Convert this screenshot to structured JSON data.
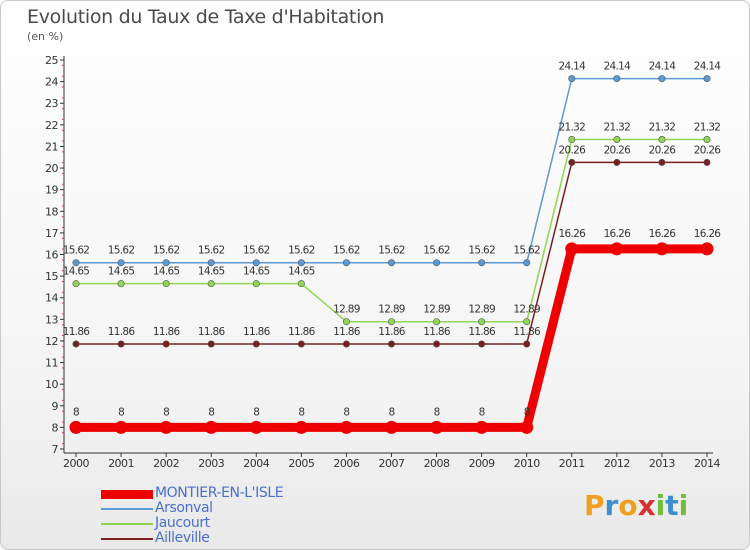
{
  "title": "Evolution du Taux de Taxe d'Habitation",
  "subtitle": "(en %)",
  "logo": {
    "text": "Proxiti",
    "letters": [
      {
        "ch": "P",
        "color": "#f0a020"
      },
      {
        "ch": "r",
        "color": "#3d8fd0"
      },
      {
        "ch": "o",
        "color": "#f0a020"
      },
      {
        "ch": "x",
        "color": "#d83030"
      },
      {
        "ch": "i",
        "color": "#6fbf3a"
      },
      {
        "ch": "t",
        "color": "#3d8fd0"
      },
      {
        "ch": "i",
        "color": "#6fbf3a"
      }
    ]
  },
  "chart_data": {
    "type": "line",
    "title": "Evolution du Taux de Taxe d'Habitation",
    "subtitle": "(en %)",
    "x": [
      2000,
      2001,
      2002,
      2003,
      2004,
      2005,
      2006,
      2007,
      2008,
      2009,
      2010,
      2011,
      2012,
      2013,
      2014
    ],
    "ylim": [
      7,
      25
    ],
    "yticks": [
      7,
      8,
      9,
      10,
      11,
      12,
      13,
      14,
      15,
      16,
      17,
      18,
      19,
      20,
      21,
      22,
      23,
      24,
      25
    ],
    "grid": false,
    "legend_position": "bottom-left",
    "series": [
      {
        "name": "MONTIER-EN-L'ISLE",
        "color": "#ee0000",
        "legend_text_color": "#4a6fd0",
        "emphasis": "thick",
        "values": [
          8,
          8,
          8,
          8,
          8,
          8,
          8,
          8,
          8,
          8,
          8,
          16.26,
          16.26,
          16.26,
          16.26
        ],
        "labels": [
          "8",
          "8",
          "8",
          "8",
          "8",
          "8",
          "8",
          "8",
          "8",
          "8",
          "8",
          "16.26",
          "16.26",
          "16.26",
          "16.26"
        ]
      },
      {
        "name": "Arsonval",
        "color": "#5b9bd5",
        "legend_text_color": "#4a6fd0",
        "emphasis": "thin",
        "values": [
          15.62,
          15.62,
          15.62,
          15.62,
          15.62,
          15.62,
          15.62,
          15.62,
          15.62,
          15.62,
          15.62,
          24.14,
          24.14,
          24.14,
          24.14
        ],
        "labels": [
          "15.62",
          "15.62",
          "15.62",
          "15.62",
          "15.62",
          "15.62",
          "15.62",
          "15.62",
          "15.62",
          "15.62",
          "15.62",
          "24.14",
          "24.14",
          "24.14",
          "24.14"
        ]
      },
      {
        "name": "Jaucourt",
        "color": "#8fd655",
        "legend_text_color": "#4a6fd0",
        "emphasis": "thin",
        "values": [
          14.65,
          14.65,
          14.65,
          14.65,
          14.65,
          14.65,
          12.89,
          12.89,
          12.89,
          12.89,
          12.89,
          21.32,
          21.32,
          21.32,
          21.32
        ],
        "labels": [
          "14.65",
          "14.65",
          "14.65",
          "14.65",
          "14.65",
          "14.65",
          "12.89",
          "12.89",
          "12.89",
          "12.89",
          "12.89",
          "21.32",
          "21.32",
          "21.32",
          "21.32"
        ]
      },
      {
        "name": "Ailleville",
        "color": "#7a1f1f",
        "legend_text_color": "#4a6fd0",
        "emphasis": "thin",
        "values": [
          11.86,
          11.86,
          11.86,
          11.86,
          11.86,
          11.86,
          11.86,
          11.86,
          11.86,
          11.86,
          11.86,
          20.26,
          20.26,
          20.26,
          20.26
        ],
        "labels": [
          "11.86",
          "11.86",
          "11.86",
          "11.86",
          "11.86",
          "11.86",
          "11.86",
          "11.86",
          "11.86",
          "11.86",
          "11.86",
          "20.26",
          "20.26",
          "20.26",
          "20.26"
        ]
      }
    ]
  }
}
